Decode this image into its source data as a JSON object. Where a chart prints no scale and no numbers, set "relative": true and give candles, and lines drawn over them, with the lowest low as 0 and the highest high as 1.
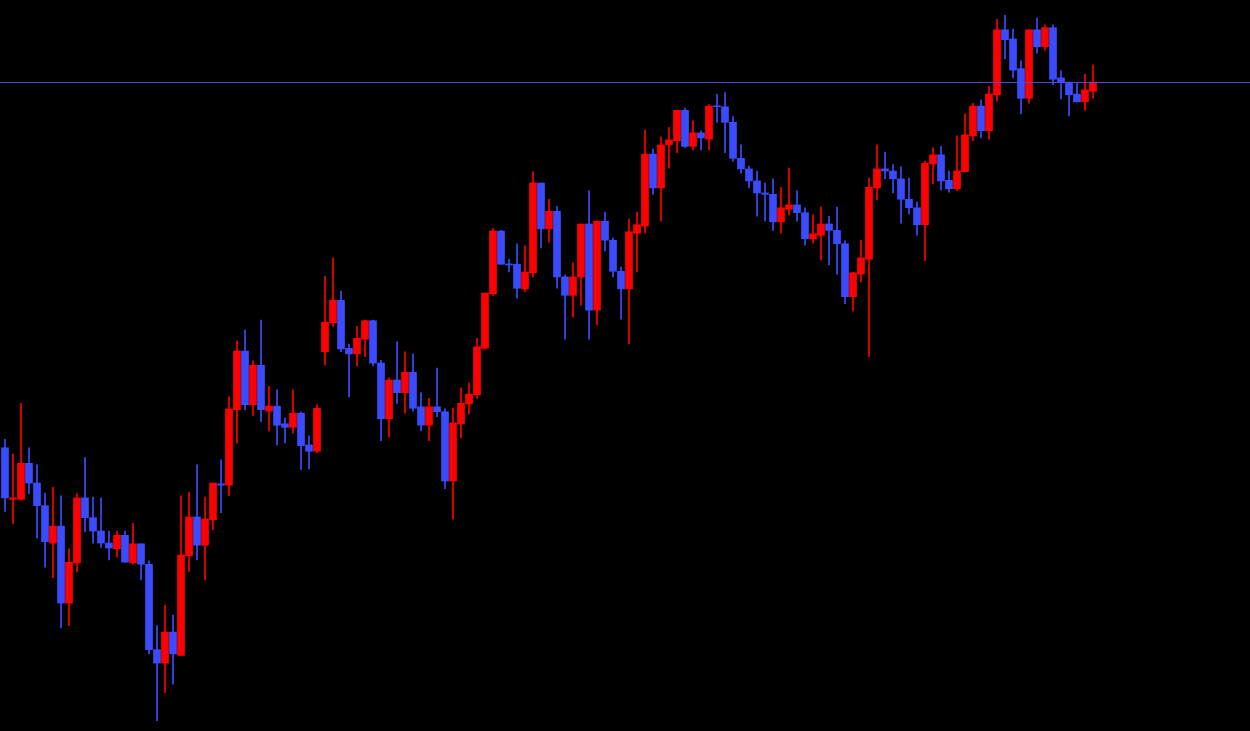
{
  "chart_data": {
    "type": "candlestick",
    "relative": true,
    "tick_labels": false,
    "categories": [
      null,
      null,
      null,
      null,
      null,
      null,
      null,
      null,
      null,
      null,
      null,
      null,
      null,
      null,
      null,
      null,
      null,
      null,
      null,
      null,
      null,
      null,
      null,
      null,
      null,
      null,
      null,
      null,
      null,
      null,
      null,
      null,
      null,
      null,
      null,
      null,
      null,
      null,
      null,
      null,
      null,
      null,
      null,
      null,
      null,
      null,
      null,
      null,
      null,
      null,
      null,
      null,
      null,
      null,
      null,
      null,
      null,
      null,
      null,
      null,
      null,
      null,
      null,
      null,
      null,
      null,
      null,
      null,
      null,
      null,
      null,
      null,
      null,
      null,
      null,
      null,
      null,
      null,
      null,
      null,
      null,
      null,
      null,
      null,
      null,
      null,
      null,
      null,
      null,
      null,
      null,
      null,
      null,
      null,
      null,
      null,
      null,
      null,
      null,
      null,
      null,
      null,
      null,
      null,
      null,
      null,
      null,
      null,
      null,
      null,
      null,
      null,
      null,
      null,
      null,
      null,
      null,
      null,
      null,
      null,
      null,
      null,
      null,
      null,
      null,
      null,
      null,
      null,
      null,
      null,
      null,
      null,
      null,
      null,
      null,
      null,
      null
    ],
    "colors": [
      "#3a4cff",
      "#ff0000",
      "#ff0000",
      "#3a4cff",
      "#3a4cff",
      "#3a4cff",
      "#ff0000",
      "#3a4cff",
      "#ff0000",
      "#ff0000",
      "#3a4cff",
      "#3a4cff",
      "#3a4cff",
      "#3a4cff",
      "#ff0000",
      "#3a4cff",
      "#ff0000",
      "#3a4cff",
      "#3a4cff",
      "#3a4cff",
      "#ff0000",
      "#3a4cff",
      "#ff0000",
      "#ff0000",
      "#3a4cff",
      "#ff0000",
      "#ff0000",
      "#3a4cff",
      "#ff0000",
      "#ff0000",
      "#3a4cff",
      "#ff0000",
      "#3a4cff",
      "#ff0000",
      "#3a4cff",
      "#3a4cff",
      "#ff0000",
      "#3a4cff",
      "#3a4cff",
      "#ff0000",
      "#ff0000",
      "#ff0000",
      "#3a4cff",
      "#3a4cff",
      "#ff0000",
      "#ff0000",
      "#3a4cff",
      "#3a4cff",
      "#ff0000",
      "#3a4cff",
      "#ff0000",
      "#3a4cff",
      "#3a4cff",
      "#ff0000",
      "#3a4cff",
      "#3a4cff",
      "#ff0000",
      "#ff0000",
      "#ff0000",
      "#ff0000",
      "#ff0000",
      "#ff0000",
      "#3a4cff",
      "#3a4cff",
      "#3a4cff",
      "#ff0000",
      "#ff0000",
      "#3a4cff",
      "#ff0000",
      "#3a4cff",
      "#3a4cff",
      "#ff0000",
      "#ff0000",
      "#3a4cff",
      "#ff0000",
      "#3a4cff",
      "#3a4cff",
      "#3a4cff",
      "#ff0000",
      "#ff0000",
      "#ff0000",
      "#3a4cff",
      "#ff0000",
      "#ff0000",
      "#ff0000",
      "#3a4cff",
      "#ff0000",
      "#3a4cff",
      "#ff0000",
      "#3a4cff",
      "#3a4cff",
      "#3a4cff",
      "#3a4cff",
      "#3a4cff",
      "#3a4cff",
      "#3a4cff",
      "#3a4cff",
      "#ff0000",
      "#ff0000",
      "#3a4cff",
      "#3a4cff",
      "#ff0000",
      "#ff0000",
      "#3a4cff",
      "#3a4cff",
      "#3a4cff",
      "#ff0000",
      "#ff0000",
      "#ff0000",
      "#ff0000",
      "#3a4cff",
      "#3a4cff",
      "#3a4cff",
      "#3a4cff",
      "#3a4cff",
      "#ff0000",
      "#ff0000",
      "#3a4cff",
      "#3a4cff",
      "#ff0000",
      "#ff0000",
      "#ff0000",
      "#3a4cff",
      "#ff0000",
      "#ff0000",
      "#3a4cff",
      "#3a4cff",
      "#3a4cff",
      "#ff0000",
      "#3a4cff",
      "#ff0000",
      "#3a4cff",
      "#3a4cff",
      "#3a4cff",
      "#3a4cff",
      "#ff0000",
      "#ff0000"
    ],
    "ohlc": [
      [
        0.387,
        0.399,
        0.297,
        0.316
      ],
      [
        0.314,
        0.378,
        0.28,
        0.316
      ],
      [
        0.314,
        0.45,
        0.314,
        0.365
      ],
      [
        0.365,
        0.387,
        0.322,
        0.337
      ],
      [
        0.337,
        0.363,
        0.259,
        0.305
      ],
      [
        0.305,
        0.323,
        0.218,
        0.254
      ],
      [
        0.252,
        0.331,
        0.203,
        0.276
      ],
      [
        0.276,
        0.319,
        0.132,
        0.167
      ],
      [
        0.167,
        0.244,
        0.135,
        0.225
      ],
      [
        0.224,
        0.322,
        0.211,
        0.316
      ],
      [
        0.316,
        0.373,
        0.268,
        0.288
      ],
      [
        0.288,
        0.317,
        0.252,
        0.269
      ],
      [
        0.269,
        0.316,
        0.246,
        0.252
      ],
      [
        0.252,
        0.269,
        0.228,
        0.245
      ],
      [
        0.244,
        0.269,
        0.232,
        0.263
      ],
      [
        0.263,
        0.269,
        0.225,
        0.225
      ],
      [
        0.224,
        0.28,
        0.222,
        0.251
      ],
      [
        0.251,
        0.251,
        0.2,
        0.222
      ],
      [
        0.222,
        0.227,
        0.095,
        0.101
      ],
      [
        0.101,
        0.135,
        0,
        0.082
      ],
      [
        0.082,
        0.164,
        0.04,
        0.126
      ],
      [
        0.126,
        0.15,
        0.052,
        0.095
      ],
      [
        0.093,
        0.319,
        0.093,
        0.235
      ],
      [
        0.234,
        0.324,
        0.212,
        0.289
      ],
      [
        0.289,
        0.363,
        0.228,
        0.249
      ],
      [
        0.249,
        0.317,
        0.2,
        0.286
      ],
      [
        0.285,
        0.337,
        0.271,
        0.337
      ],
      [
        0.336,
        0.37,
        0.295,
        0.334
      ],
      [
        0.334,
        0.459,
        0.319,
        0.442
      ],
      [
        0.441,
        0.538,
        0.394,
        0.524
      ],
      [
        0.524,
        0.554,
        0.441,
        0.448
      ],
      [
        0.448,
        0.51,
        0.433,
        0.504
      ],
      [
        0.504,
        0.568,
        0.424,
        0.441
      ],
      [
        0.439,
        0.474,
        0.411,
        0.446
      ],
      [
        0.446,
        0.469,
        0.391,
        0.419
      ],
      [
        0.421,
        0.429,
        0.394,
        0.416
      ],
      [
        0.416,
        0.469,
        0.408,
        0.436
      ],
      [
        0.436,
        0.438,
        0.356,
        0.39
      ],
      [
        0.391,
        0.404,
        0.357,
        0.382
      ],
      [
        0.382,
        0.448,
        0.38,
        0.443
      ],
      [
        0.523,
        0.63,
        0.504,
        0.565
      ],
      [
        0.564,
        0.656,
        0.559,
        0.596
      ],
      [
        0.596,
        0.609,
        0.523,
        0.527
      ],
      [
        0.528,
        0.534,
        0.459,
        0.52
      ],
      [
        0.52,
        0.559,
        0.503,
        0.542
      ],
      [
        0.541,
        0.568,
        0.516,
        0.567
      ],
      [
        0.567,
        0.568,
        0.503,
        0.507
      ],
      [
        0.507,
        0.511,
        0.397,
        0.428
      ],
      [
        0.428,
        0.486,
        0.402,
        0.483
      ],
      [
        0.483,
        0.537,
        0.45,
        0.465
      ],
      [
        0.465,
        0.523,
        0.436,
        0.494
      ],
      [
        0.494,
        0.52,
        0.439,
        0.443
      ],
      [
        0.445,
        0.465,
        0.411,
        0.419
      ],
      [
        0.419,
        0.457,
        0.397,
        0.445
      ],
      [
        0.445,
        0.5,
        0.431,
        0.438
      ],
      [
        0.438,
        0.442,
        0.329,
        0.34
      ],
      [
        0.34,
        0.443,
        0.286,
        0.422
      ],
      [
        0.421,
        0.472,
        0.401,
        0.45
      ],
      [
        0.449,
        0.479,
        0.435,
        0.463
      ],
      [
        0.462,
        0.542,
        0.457,
        0.53
      ],
      [
        0.528,
        0.606,
        0.527,
        0.606
      ],
      [
        0.605,
        0.698,
        0.602,
        0.694
      ],
      [
        0.694,
        0.695,
        0.647,
        0.647
      ],
      [
        0.647,
        0.654,
        0.636,
        0.646
      ],
      [
        0.647,
        0.676,
        0.599,
        0.613
      ],
      [
        0.612,
        0.673,
        0.608,
        0.636
      ],
      [
        0.635,
        0.778,
        0.629,
        0.762
      ],
      [
        0.762,
        0.762,
        0.67,
        0.697
      ],
      [
        0.697,
        0.739,
        0.678,
        0.722
      ],
      [
        0.722,
        0.729,
        0.613,
        0.629
      ],
      [
        0.629,
        0.632,
        0.541,
        0.603
      ],
      [
        0.603,
        0.649,
        0.572,
        0.629
      ],
      [
        0.629,
        0.704,
        0.589,
        0.704
      ],
      [
        0.704,
        0.751,
        0.541,
        0.582
      ],
      [
        0.582,
        0.708,
        0.561,
        0.708
      ],
      [
        0.708,
        0.721,
        0.666,
        0.681
      ],
      [
        0.681,
        0.684,
        0.629,
        0.637
      ],
      [
        0.637,
        0.643,
        0.569,
        0.612
      ],
      [
        0.612,
        0.711,
        0.534,
        0.693
      ],
      [
        0.691,
        0.721,
        0.636,
        0.703
      ],
      [
        0.701,
        0.837,
        0.691,
        0.803
      ],
      [
        0.803,
        0.81,
        0.746,
        0.755
      ],
      [
        0.755,
        0.827,
        0.708,
        0.816
      ],
      [
        0.816,
        0.841,
        0.783,
        0.823
      ],
      [
        0.822,
        0.865,
        0.805,
        0.865
      ],
      [
        0.865,
        0.868,
        0.812,
        0.814
      ],
      [
        0.814,
        0.85,
        0.809,
        0.833
      ],
      [
        0.833,
        0.836,
        0.809,
        0.826
      ],
      [
        0.824,
        0.873,
        0.809,
        0.871
      ],
      [
        0.871,
        0.888,
        0.848,
        0.87
      ],
      [
        0.87,
        0.89,
        0.805,
        0.848
      ],
      [
        0.848,
        0.856,
        0.793,
        0.797
      ],
      [
        0.797,
        0.816,
        0.776,
        0.782
      ],
      [
        0.782,
        0.786,
        0.755,
        0.765
      ],
      [
        0.765,
        0.779,
        0.715,
        0.748
      ],
      [
        0.748,
        0.762,
        0.708,
        0.746
      ],
      [
        0.746,
        0.768,
        0.695,
        0.707
      ],
      [
        0.707,
        0.756,
        0.691,
        0.727
      ],
      [
        0.725,
        0.783,
        0.717,
        0.731
      ],
      [
        0.731,
        0.751,
        0.708,
        0.72
      ],
      [
        0.72,
        0.727,
        0.674,
        0.683
      ],
      [
        0.683,
        0.717,
        0.677,
        0.69
      ],
      [
        0.688,
        0.728,
        0.653,
        0.704
      ],
      [
        0.704,
        0.715,
        0.646,
        0.695
      ],
      [
        0.695,
        0.728,
        0.633,
        0.676
      ],
      [
        0.676,
        0.68,
        0.591,
        0.601
      ],
      [
        0.601,
        0.635,
        0.581,
        0.635
      ],
      [
        0.633,
        0.681,
        0.622,
        0.656
      ],
      [
        0.654,
        0.769,
        0.516,
        0.756
      ],
      [
        0.755,
        0.816,
        0.738,
        0.782
      ],
      [
        0.782,
        0.806,
        0.768,
        0.779
      ],
      [
        0.779,
        0.788,
        0.748,
        0.768
      ],
      [
        0.768,
        0.785,
        0.705,
        0.739
      ],
      [
        0.739,
        0.769,
        0.718,
        0.727
      ],
      [
        0.727,
        0.735,
        0.688,
        0.703
      ],
      [
        0.703,
        0.793,
        0.652,
        0.79
      ],
      [
        0.789,
        0.812,
        0.761,
        0.802
      ],
      [
        0.802,
        0.814,
        0.752,
        0.765
      ],
      [
        0.766,
        0.779,
        0.749,
        0.754
      ],
      [
        0.754,
        0.829,
        0.751,
        0.779
      ],
      [
        0.778,
        0.86,
        0.778,
        0.83
      ],
      [
        0.829,
        0.875,
        0.822,
        0.871
      ],
      [
        0.871,
        0.88,
        0.826,
        0.836
      ],
      [
        0.836,
        0.899,
        0.824,
        0.888
      ],
      [
        0.887,
        0.994,
        0.878,
        0.979
      ],
      [
        0.979,
        1,
        0.938,
        0.965
      ],
      [
        0.966,
        0.98,
        0.911,
        0.922
      ],
      [
        0.924,
        0.935,
        0.86,
        0.882
      ],
      [
        0.882,
        0.979,
        0.875,
        0.979
      ],
      [
        0.979,
        0.996,
        0.946,
        0.955
      ],
      [
        0.955,
        0.986,
        0.95,
        0.982
      ],
      [
        0.982,
        0.986,
        0.901,
        0.909
      ],
      [
        0.911,
        0.921,
        0.881,
        0.905
      ],
      [
        0.905,
        0.905,
        0.857,
        0.887
      ],
      [
        0.888,
        0.904,
        0.877,
        0.877
      ],
      [
        0.877,
        0.916,
        0.865,
        0.894
      ],
      [
        0.892,
        0.929,
        0.882,
        0.905
      ]
    ],
    "ref_lines": [
      {
        "axis": "y",
        "value": 0.905,
        "color": "#4b4bd6"
      }
    ]
  }
}
